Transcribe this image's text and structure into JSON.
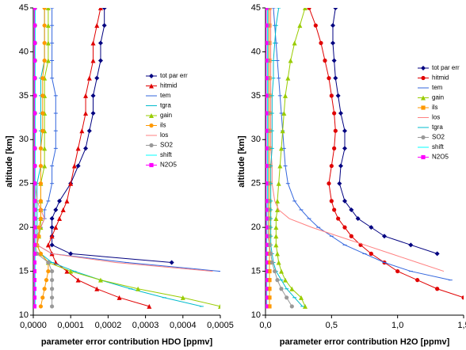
{
  "chart_data": [
    {
      "type": "line",
      "xlabel": "parameter error contribution HDO [ppmv]",
      "ylabel": "altitude [km]",
      "xlim": [
        0,
        0.0005
      ],
      "ylim": [
        10,
        45
      ],
      "xticks": [
        {
          "value": 0,
          "label": "0,0000"
        },
        {
          "value": 0.0001,
          "label": "0,0001"
        },
        {
          "value": 0.0002,
          "label": "0,0002"
        },
        {
          "value": 0.0003,
          "label": "0,0003"
        },
        {
          "value": 0.0004,
          "label": "0,0004"
        },
        {
          "value": 0.0005,
          "label": "0,0005"
        }
      ],
      "yticks": [
        10,
        15,
        20,
        25,
        30,
        35,
        40,
        45
      ],
      "y": [
        11,
        12,
        13,
        14,
        15,
        16,
        17,
        18,
        19,
        20,
        21,
        22,
        23,
        25,
        27,
        29,
        31,
        33,
        35,
        37,
        39,
        41,
        43,
        45
      ],
      "series": [
        {
          "name": "tot par err",
          "color": "#000080",
          "marker": "diamond",
          "values": [
            null,
            null,
            null,
            null,
            null,
            0.00037,
            0.0001,
            5e-05,
            5e-05,
            5e-05,
            5e-05,
            6e-05,
            7e-05,
            0.0001,
            0.00012,
            0.00014,
            0.00015,
            0.00016,
            0.00016,
            0.00017,
            0.00018,
            0.00018,
            0.00019,
            0.00019
          ]
        },
        {
          "name": "hitmid",
          "color": "#e00000",
          "marker": "triangle",
          "values": [
            0.00031,
            0.00023,
            0.00017,
            0.00012,
            9e-05,
            6e-05,
            5e-05,
            4e-05,
            5e-05,
            6e-05,
            7e-05,
            8e-05,
            9e-05,
            0.0001,
            0.00011,
            0.00012,
            0.00013,
            0.00014,
            0.00014,
            0.00015,
            0.00016,
            0.00016,
            0.00017,
            0.00018
          ]
        },
        {
          "name": "tem",
          "color": "#3366dd",
          "marker": "dash",
          "values": [
            null,
            null,
            null,
            null,
            0.0005,
            0.00025,
            5e-05,
            1e-05,
            1e-05,
            2e-05,
            3e-05,
            3e-05,
            4e-05,
            5e-05,
            5e-05,
            6e-05,
            6e-05,
            6e-05,
            6e-05,
            5e-05,
            5e-05,
            5e-05,
            5e-05,
            5e-05
          ]
        },
        {
          "name": "tgra",
          "color": "#00bbcc",
          "marker": "dash",
          "values": [
            0.00045,
            0.00035,
            0.00026,
            0.00018,
            0.00011,
            5e-05,
            2e-05,
            1e-05,
            1e-05,
            1e-05,
            1e-05,
            1e-05,
            1e-05,
            1e-05,
            2e-05,
            2e-05,
            2e-05,
            2e-05,
            2e-05,
            2e-05,
            3e-05,
            3e-05,
            3e-05,
            3e-05
          ]
        },
        {
          "name": "gain",
          "color": "#99cc00",
          "marker": "triangle",
          "values": [
            0.0005,
            0.0004,
            0.00028,
            0.00018,
            0.0001,
            4e-05,
            2e-05,
            1e-05,
            1.5e-05,
            2e-05,
            2e-05,
            2e-05,
            2e-05,
            2e-05,
            3e-05,
            3e-05,
            3e-05,
            3e-05,
            3e-05,
            3e-05,
            4e-05,
            4e-05,
            4e-05,
            4e-05
          ]
        },
        {
          "name": "ils",
          "color": "#ff9900",
          "marker": "circle",
          "values": [
            2e-05,
            2.5e-05,
            3e-05,
            3.5e-05,
            4e-05,
            4e-05,
            2e-05,
            1e-05,
            1.5e-05,
            1.5e-05,
            2e-05,
            2e-05,
            2e-05,
            2e-05,
            2e-05,
            2e-05,
            2.5e-05,
            2.5e-05,
            2.5e-05,
            2.5e-05,
            3e-05,
            3e-05,
            3e-05,
            3e-05
          ]
        },
        {
          "name": "los",
          "color": "#ff8080",
          "marker": "none",
          "values": [
            null,
            null,
            null,
            null,
            0.00048,
            0.00022,
            5e-05,
            1e-05,
            1e-05,
            2e-05,
            3e-05,
            2e-05,
            1e-05,
            5e-06,
            5e-06,
            5e-06,
            5e-06,
            5e-06,
            5e-06,
            5e-06,
            5e-06,
            5e-06,
            5e-06,
            5e-06
          ]
        },
        {
          "name": "SO2",
          "color": "#999999",
          "marker": "circle",
          "values": [
            5e-05,
            5e-05,
            5e-05,
            5e-05,
            5e-05,
            4e-05,
            1e-05,
            5e-06,
            5e-06,
            5e-06,
            5e-06,
            5e-06,
            5e-06,
            5e-06,
            5e-06,
            5e-06,
            5e-06,
            5e-06,
            5e-06,
            5e-06,
            5e-06,
            5e-06,
            5e-06,
            5e-06
          ]
        },
        {
          "name": "shift",
          "color": "#00ffff",
          "marker": "none",
          "values": [
            5e-06,
            5e-06,
            5e-06,
            5e-06,
            5e-06,
            5e-06,
            5e-06,
            5e-06,
            5e-06,
            5e-06,
            5e-06,
            5e-06,
            5e-06,
            5e-06,
            5e-06,
            5e-06,
            5e-06,
            5e-06,
            5e-06,
            5e-06,
            5e-06,
            5e-06,
            5e-06,
            5e-06
          ]
        },
        {
          "name": "N2O5",
          "color": "#ff00ff",
          "marker": "square",
          "values": [
            3e-06,
            3e-06,
            3e-06,
            3e-06,
            3e-06,
            3e-06,
            3e-06,
            3e-06,
            3e-06,
            3e-06,
            3e-06,
            3e-06,
            3e-06,
            3e-06,
            3e-06,
            3e-06,
            3e-06,
            3e-06,
            3e-06,
            3e-06,
            3e-06,
            3e-06,
            3e-06,
            3e-06
          ]
        }
      ]
    },
    {
      "type": "line",
      "xlabel": "parameter error contribution H2O [ppmv]",
      "ylabel": "altitude [km]",
      "xlim": [
        0,
        1.5
      ],
      "ylim": [
        10,
        45
      ],
      "xticks": [
        {
          "value": 0,
          "label": "0,0"
        },
        {
          "value": 0.5,
          "label": "0,5"
        },
        {
          "value": 1,
          "label": "1,0"
        },
        {
          "value": 1.5,
          "label": "1,5"
        }
      ],
      "yticks": [
        10,
        15,
        20,
        25,
        30,
        35,
        40,
        45
      ],
      "y": [
        11,
        12,
        13,
        14,
        15,
        16,
        17,
        18,
        19,
        20,
        21,
        22,
        23,
        25,
        27,
        29,
        31,
        33,
        35,
        37,
        39,
        41,
        43,
        45
      ],
      "series": [
        {
          "name": "tot par err",
          "color": "#000080",
          "marker": "diamond",
          "values": [
            null,
            null,
            null,
            null,
            null,
            null,
            1.3,
            1.1,
            0.9,
            0.8,
            0.7,
            0.65,
            0.6,
            0.56,
            0.57,
            0.6,
            0.6,
            0.57,
            0.55,
            0.53,
            0.52,
            0.51,
            0.51,
            0.53
          ]
        },
        {
          "name": "hitmid",
          "color": "#e00000",
          "marker": "circle",
          "values": [
            null,
            1.5,
            1.3,
            1.15,
            1.0,
            0.9,
            0.8,
            0.72,
            0.65,
            0.6,
            0.55,
            0.52,
            0.5,
            0.48,
            0.5,
            0.52,
            0.53,
            0.52,
            0.5,
            0.48,
            0.45,
            0.42,
            0.38,
            0.33
          ]
        },
        {
          "name": "tem",
          "color": "#3366dd",
          "marker": "dash",
          "values": [
            null,
            null,
            null,
            1.4,
            1.1,
            0.9,
            0.75,
            0.6,
            0.5,
            0.4,
            0.33,
            0.27,
            0.22,
            0.17,
            0.15,
            0.14,
            0.13,
            0.12,
            0.11,
            0.1,
            0.09,
            0.08,
            0.07,
            0.06
          ]
        },
        {
          "name": "gain",
          "color": "#99cc00",
          "marker": "triangle",
          "values": [
            0.3,
            0.27,
            0.2,
            0.15,
            0.12,
            0.1,
            0.09,
            0.08,
            0.08,
            0.08,
            0.08,
            0.09,
            0.09,
            0.1,
            0.11,
            0.12,
            0.13,
            0.14,
            0.15,
            0.17,
            0.19,
            0.22,
            0.26,
            0.3
          ]
        },
        {
          "name": "ils",
          "color": "#ff9900",
          "marker": "square",
          "values": [
            0.03,
            0.03,
            0.03,
            0.03,
            0.03,
            0.03,
            0.03,
            0.03,
            0.03,
            0.03,
            0.03,
            0.03,
            0.03,
            0.03,
            0.03,
            0.03,
            0.03,
            0.03,
            0.03,
            0.03,
            0.03,
            0.03,
            0.03,
            0.03
          ]
        },
        {
          "name": "los",
          "color": "#ff8080",
          "marker": "none",
          "values": [
            null,
            null,
            null,
            null,
            1.35,
            1.15,
            0.95,
            0.75,
            0.55,
            0.35,
            0.18,
            0.1,
            0.07,
            0.05,
            0.05,
            0.04,
            0.04,
            0.04,
            0.04,
            0.04,
            0.04,
            0.04,
            0.04,
            0.04
          ]
        },
        {
          "name": "tgra",
          "color": "#00bbcc",
          "marker": "dash",
          "values": [
            0.28,
            0.22,
            0.16,
            0.12,
            0.08,
            0.06,
            0.05,
            0.04,
            0.04,
            0.04,
            0.04,
            0.04,
            0.04,
            0.04,
            0.04,
            0.05,
            0.05,
            0.05,
            0.05,
            0.06,
            0.06,
            0.07,
            0.08,
            0.1
          ]
        },
        {
          "name": "SO2",
          "color": "#999999",
          "marker": "circle",
          "values": [
            0.2,
            0.16,
            0.12,
            0.09,
            0.07,
            0.05,
            0.04,
            0.03,
            0.02,
            0.02,
            0.02,
            0.02,
            0.02,
            0.02,
            0.02,
            0.02,
            0.02,
            0.02,
            0.02,
            0.02,
            0.02,
            0.02,
            0.02,
            0.02
          ]
        },
        {
          "name": "shift",
          "color": "#00ffff",
          "marker": "none",
          "values": [
            0.01,
            0.01,
            0.01,
            0.01,
            0.01,
            0.01,
            0.01,
            0.01,
            0.01,
            0.01,
            0.01,
            0.01,
            0.015,
            0.015,
            0.015,
            0.015,
            0.015,
            0.015,
            0.015,
            0.015,
            0.015,
            0.015,
            0.015,
            0.015
          ]
        },
        {
          "name": "N2O5",
          "color": "#ff00ff",
          "marker": "square",
          "values": [
            0.005,
            0.005,
            0.005,
            0.005,
            0.005,
            0.005,
            0.005,
            0.005,
            0.005,
            0.005,
            0.005,
            0.005,
            0.005,
            0.005,
            0.005,
            0.005,
            0.005,
            0.005,
            0.005,
            0.005,
            0.005,
            0.005,
            0.005,
            0.005
          ]
        }
      ]
    }
  ]
}
